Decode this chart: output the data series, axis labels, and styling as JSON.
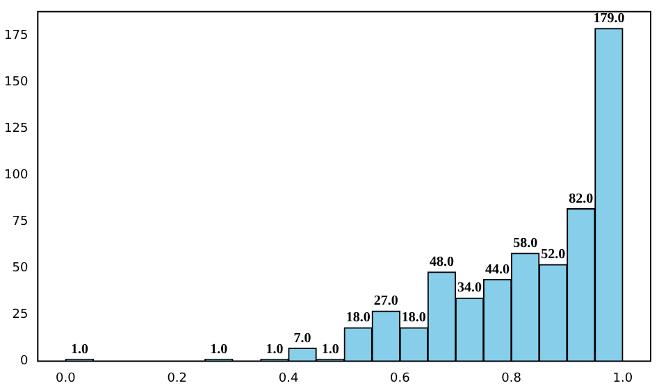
{
  "chart_data": {
    "type": "histogram",
    "bins": [
      0,
      0.05,
      0.1,
      0.15,
      0.2,
      0.25,
      0.3,
      0.35,
      0.4,
      0.45,
      0.5,
      0.55,
      0.6,
      0.65,
      0.7,
      0.75,
      0.8,
      0.85,
      0.9,
      0.95,
      1.0
    ],
    "values": [
      1,
      0,
      0,
      0,
      0,
      1,
      0,
      1,
      7,
      1,
      18,
      27,
      18,
      48,
      34,
      44,
      58,
      52,
      82,
      179
    ],
    "value_labels": [
      "1.0",
      null,
      null,
      null,
      null,
      "1.0",
      null,
      "1.0",
      "7.0",
      "1.0",
      "18.0",
      "27.0",
      "18.0",
      "48.0",
      "34.0",
      "44.0",
      "58.0",
      "52.0",
      "82.0",
      "179.0"
    ],
    "color": "#87ceeb",
    "xlim": [
      -0.05,
      1.05
    ],
    "xticks": [
      {
        "value": 0,
        "label": "0.0"
      },
      {
        "value": 0.2,
        "label": "0.2"
      },
      {
        "value": 0.4,
        "label": "0.4"
      },
      {
        "value": 0.6,
        "label": "0.6"
      },
      {
        "value": 0.8,
        "label": "0.8"
      },
      {
        "value": 1,
        "label": "1.0"
      }
    ],
    "ylim": [
      0,
      188
    ],
    "yticks": [
      0,
      25,
      50,
      75,
      100,
      125,
      150,
      175
    ],
    "grid": false,
    "legend": false
  }
}
